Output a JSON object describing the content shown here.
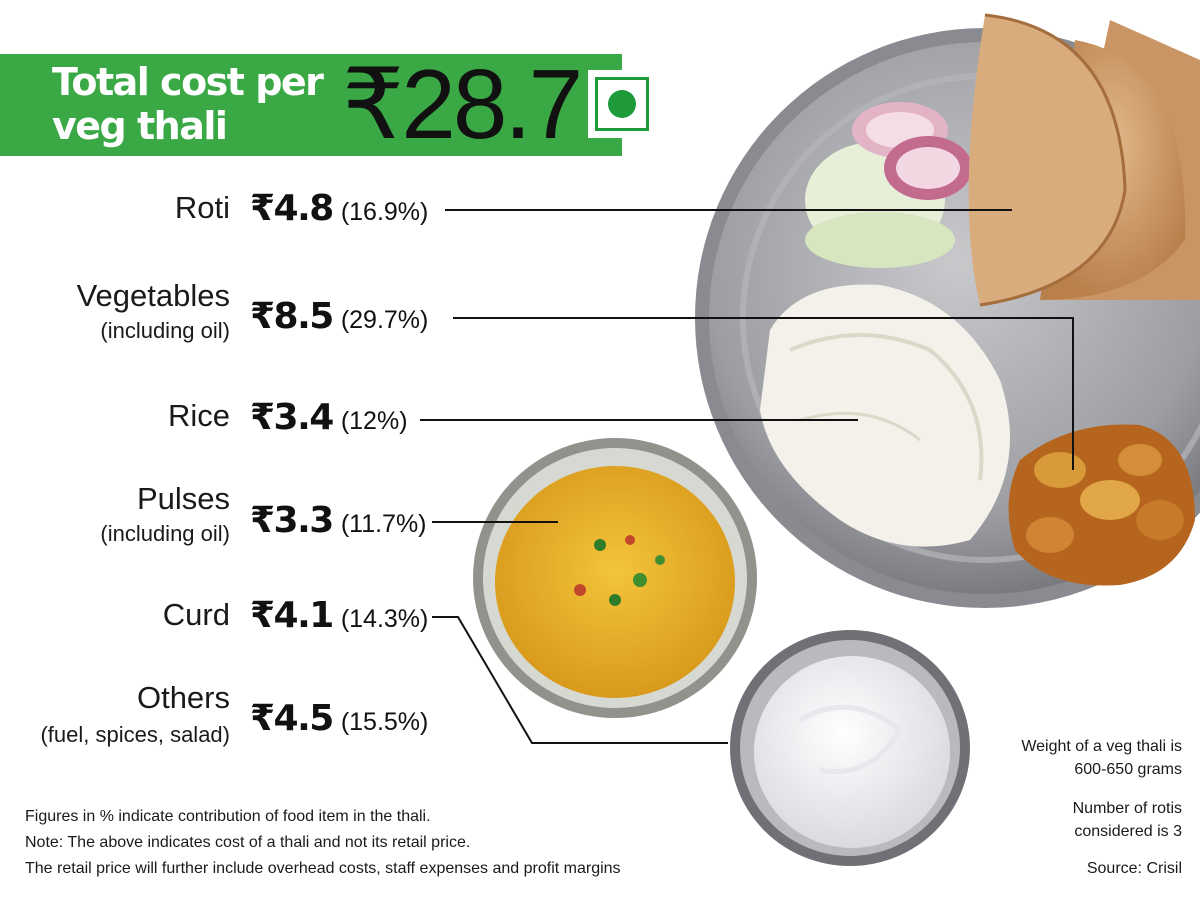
{
  "header": {
    "title": "Total cost per veg thali",
    "total": "₹28.7",
    "veg_symbol_color": "#1f9a3a",
    "banner_color": "#3aa845"
  },
  "items": [
    {
      "name": "Roti",
      "sub": "",
      "cost": "₹4.8",
      "share": "(16.9%)"
    },
    {
      "name": "Vegetables",
      "sub": "(including oil)",
      "cost": "₹8.5",
      "share": "(29.7%)"
    },
    {
      "name": "Rice",
      "sub": "",
      "cost": "₹3.4",
      "share": "(12%)"
    },
    {
      "name": "Pulses",
      "sub": "(including oil)",
      "cost": "₹3.3",
      "share": "(11.7%)"
    },
    {
      "name": "Curd",
      "sub": "",
      "cost": "₹4.1",
      "share": "(14.3%)"
    },
    {
      "name": "Others",
      "sub": "(fuel, spices, salad)",
      "cost": "₹4.5",
      "share": "(15.5%)"
    }
  ],
  "footnotes": [
    "Figures in % indicate contribution of food item in the thali.",
    "Note: The above indicates cost of a thali and not its retail price.",
    "The retail price will further include overhead costs, staff expenses  and profit margins"
  ],
  "side_notes": {
    "weight": [
      "Weight of a veg thali is",
      "600-650 grams"
    ],
    "rotis": [
      "Number of rotis",
      "considered is 3"
    ],
    "source": "Source: Crisil"
  }
}
